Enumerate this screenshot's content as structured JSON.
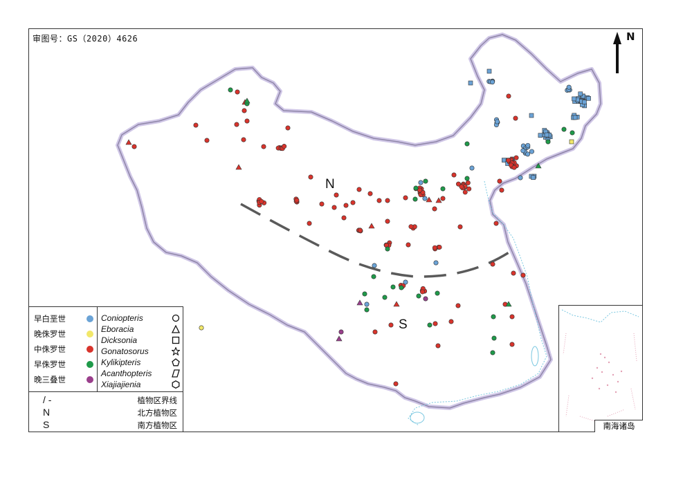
{
  "approval_number": "审图号：GS（2020）4626",
  "north_label": "N",
  "region_labels": {
    "north": "N",
    "south": "S"
  },
  "legend": {
    "ages": [
      {
        "label": "早白垩世",
        "color": "#6ba3d6"
      },
      {
        "label": "晚侏罗世",
        "color": "#f2e86a"
      },
      {
        "label": "中侏罗世",
        "color": "#d8342c"
      },
      {
        "label": "早侏罗世",
        "color": "#1f9a4a"
      },
      {
        "label": "晚三叠世",
        "color": "#9a3f8c"
      }
    ],
    "genera": [
      {
        "label": "Coniopteris",
        "symbol": "circle"
      },
      {
        "label": "Eboracia",
        "symbol": "triangle"
      },
      {
        "label": "Dicksonia",
        "symbol": "square"
      },
      {
        "label": "Gonatosorus",
        "symbol": "star"
      },
      {
        "label": "Kylikipteris",
        "symbol": "pentagon"
      },
      {
        "label": "Acanthopteris",
        "symbol": "parallelogram"
      },
      {
        "label": "Xiajiajienia",
        "symbol": "hexagon"
      }
    ],
    "lines": [
      {
        "symbol": "/ -",
        "label": "植物区界线"
      },
      {
        "symbol": "N",
        "label": "北方植物区"
      },
      {
        "symbol": "S",
        "label": "南方植物区"
      }
    ]
  },
  "inset_label": "南海诸岛",
  "colors": {
    "border": "#a89bc9",
    "boundary": "#5a5a5a",
    "coast": "#79c7e0"
  }
}
